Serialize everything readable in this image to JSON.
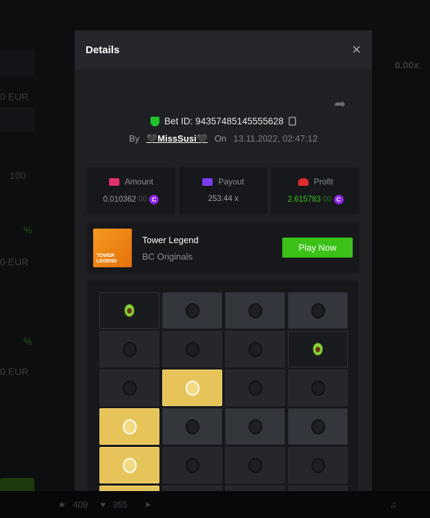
{
  "background": {
    "eur_labels": [
      "0 EUR",
      "0 EUR",
      "0 EUR"
    ],
    "count_value": "100",
    "percent": "%",
    "multiplier": "0.00x"
  },
  "modal": {
    "title": "Details",
    "close": "×",
    "bet_id_label": "Bet ID: 94357485145555628",
    "by_label": "By",
    "user": "🖤MissSusi🖤",
    "on_label": "On",
    "date": "13.11.2022, 02:47:12",
    "stats": [
      {
        "label": "Amount",
        "value": "0.010362",
        "value_faded": "00",
        "icon": "amount-icon",
        "color": "#e0306b"
      },
      {
        "label": "Payout",
        "value": "253.44 x",
        "icon": "payout-card-icon",
        "color": "#7b3df0"
      },
      {
        "label": "Profit",
        "value": "2.615783",
        "value_faded": "00",
        "icon": "profit-hand-icon",
        "color": "#e02b2b",
        "value_color": "#3bc117"
      }
    ],
    "coin_symbol": "C",
    "game": {
      "name": "Tower Legend",
      "provider": "BC Originals",
      "thumb_text": "TOWER LEGEND",
      "play_label": "Play Now"
    },
    "grid": [
      [
        "gem",
        "gray",
        "gray",
        "gray"
      ],
      [
        "dim",
        "dim",
        "dim",
        "gem"
      ],
      [
        "dim",
        "gold",
        "dim",
        "dim"
      ],
      [
        "gold",
        "gray",
        "gray",
        "gray"
      ],
      [
        "gold",
        "dim",
        "dim",
        "dim"
      ],
      [
        "gold",
        "dim",
        "dim",
        "dim"
      ]
    ]
  },
  "footer": {
    "likes_star": "409",
    "likes_heart": "355"
  },
  "colors": {
    "accent": "#3bc117",
    "gold": "#e6c45a",
    "coin": "#8a24e0"
  }
}
